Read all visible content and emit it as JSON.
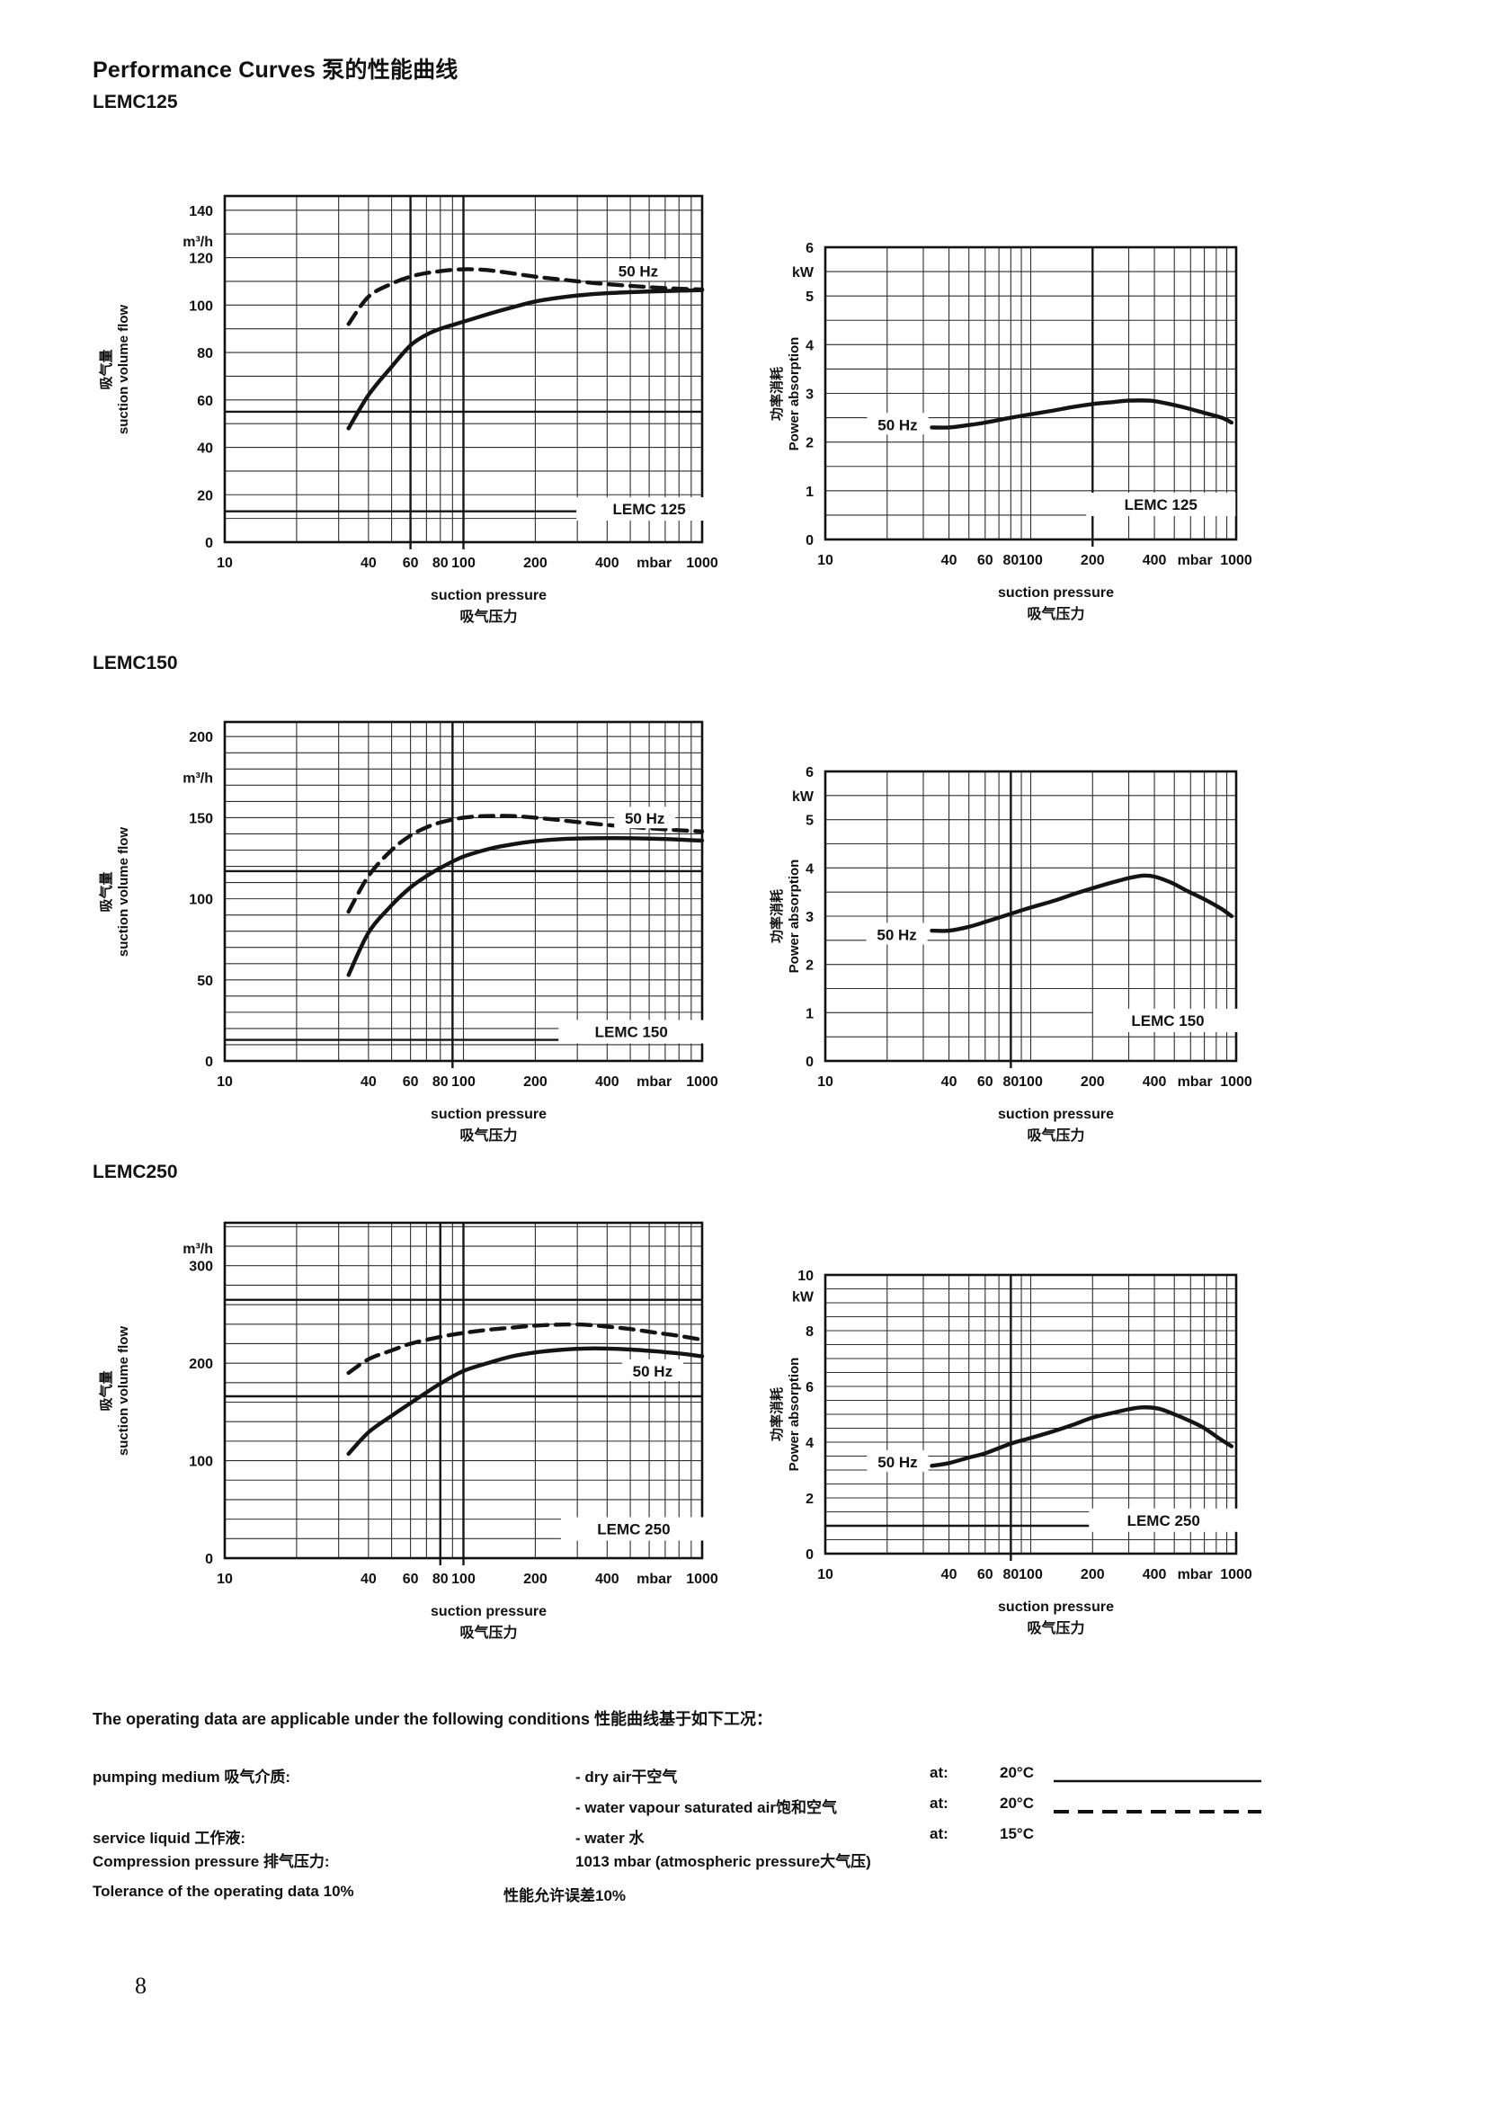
{
  "page": {
    "title": "Performance Curves 泵的性能曲线",
    "page_number": "8"
  },
  "sections": [
    {
      "heading": "LEMC125"
    },
    {
      "heading": "LEMC150"
    },
    {
      "heading": "LEMC250"
    }
  ],
  "axis_labels": {
    "x_title_en": "suction pressure",
    "x_title_zh": "吸气压力",
    "flow_y_zh": "吸气量",
    "flow_y_en": "suction volume flow",
    "power_y_zh": "功率消耗",
    "power_y_en": "Power absorption",
    "freq_label": "50 Hz"
  },
  "chart_data": [
    {
      "id": "lemc125-flow",
      "type": "line",
      "model": "LEMC 125",
      "x_axis": {
        "scale": "log",
        "min": 10,
        "max": 1000,
        "unit": "mbar",
        "tick_labels": [
          "10",
          "40",
          "60",
          "80",
          "100",
          "200",
          "400",
          "mbar",
          "1000"
        ],
        "tick_values": [
          10,
          40,
          60,
          80,
          100,
          200,
          400,
          630,
          1000
        ]
      },
      "y_axis": {
        "min": 0,
        "max": 146,
        "unit": "m³/h",
        "tick_labels": [
          "0",
          "20",
          "40",
          "60",
          "80",
          "100",
          "120",
          "140"
        ],
        "tick_values": [
          0,
          20,
          40,
          60,
          80,
          100,
          120,
          140
        ]
      },
      "series": [
        {
          "name": "50 Hz dry air",
          "style": "solid",
          "points": [
            [
              33,
              48
            ],
            [
              40,
              62
            ],
            [
              50,
              74
            ],
            [
              60,
              83
            ],
            [
              70,
              87.5
            ],
            [
              80,
              90
            ],
            [
              100,
              93
            ],
            [
              130,
              96.5
            ],
            [
              160,
              99
            ],
            [
              200,
              101.5
            ],
            [
              260,
              103.3
            ],
            [
              320,
              104.3
            ],
            [
              400,
              105
            ],
            [
              550,
              105.6
            ],
            [
              750,
              106
            ],
            [
              1000,
              106.3
            ]
          ]
        },
        {
          "name": "50 Hz water vapour saturated air",
          "style": "dashed",
          "points": [
            [
              33,
              92
            ],
            [
              40,
              103.5
            ],
            [
              50,
              109
            ],
            [
              60,
              112
            ],
            [
              70,
              113.5
            ],
            [
              80,
              114.3
            ],
            [
              95,
              115
            ],
            [
              115,
              115
            ],
            [
              140,
              114.2
            ],
            [
              200,
              112
            ],
            [
              260,
              110.7
            ],
            [
              330,
              109.6
            ],
            [
              400,
              108.8
            ],
            [
              550,
              107.8
            ],
            [
              750,
              107
            ],
            [
              1000,
              106.6
            ]
          ]
        }
      ]
    },
    {
      "id": "lemc125-power",
      "type": "line",
      "model": "LEMC 125",
      "x_axis": {
        "scale": "log",
        "min": 10,
        "max": 1000,
        "unit": "mbar",
        "tick_labels": [
          "10",
          "40",
          "60",
          "80",
          "100",
          "200",
          "400",
          "mbar",
          "1000"
        ],
        "tick_values": [
          10,
          40,
          60,
          80,
          100,
          200,
          400,
          630,
          1000
        ]
      },
      "y_axis": {
        "min": 0,
        "max": 6,
        "unit": "kW",
        "tick_labels": [
          "0",
          "1",
          "2",
          "3",
          "4",
          "5",
          "6"
        ],
        "tick_values": [
          0,
          1,
          2,
          3,
          4,
          5,
          6
        ]
      },
      "series": [
        {
          "name": "50 Hz",
          "style": "solid",
          "points": [
            [
              33,
              2.3
            ],
            [
              40,
              2.3
            ],
            [
              50,
              2.35
            ],
            [
              60,
              2.4
            ],
            [
              80,
              2.5
            ],
            [
              100,
              2.57
            ],
            [
              130,
              2.65
            ],
            [
              160,
              2.72
            ],
            [
              200,
              2.78
            ],
            [
              250,
              2.82
            ],
            [
              300,
              2.85
            ],
            [
              380,
              2.85
            ],
            [
              450,
              2.8
            ],
            [
              550,
              2.72
            ],
            [
              700,
              2.6
            ],
            [
              850,
              2.5
            ],
            [
              950,
              2.4
            ]
          ]
        }
      ]
    },
    {
      "id": "lemc150-flow",
      "type": "line",
      "model": "LEMC 150",
      "x_axis": {
        "scale": "log",
        "min": 10,
        "max": 1000,
        "unit": "mbar",
        "tick_labels": [
          "10",
          "40",
          "60",
          "80",
          "100",
          "200",
          "400",
          "mbar",
          "1000"
        ],
        "tick_values": [
          10,
          40,
          60,
          80,
          100,
          200,
          400,
          630,
          1000
        ]
      },
      "y_axis": {
        "min": 0,
        "max": 209,
        "unit": "m³/h",
        "tick_labels": [
          "0",
          "50",
          "100",
          "150",
          "200"
        ],
        "tick_values": [
          0,
          50,
          100,
          150,
          200
        ]
      },
      "series": [
        {
          "name": "50 Hz dry air",
          "style": "solid",
          "points": [
            [
              33,
              53
            ],
            [
              40,
              79
            ],
            [
              50,
              96
            ],
            [
              60,
              107
            ],
            [
              70,
              114
            ],
            [
              80,
              119
            ],
            [
              100,
              126
            ],
            [
              130,
              131
            ],
            [
              160,
              133.5
            ],
            [
              200,
              135.5
            ],
            [
              260,
              136.8
            ],
            [
              350,
              137.3
            ],
            [
              500,
              137.3
            ],
            [
              700,
              136.8
            ],
            [
              1000,
              135.8
            ]
          ]
        },
        {
          "name": "50 Hz water vapour saturated air",
          "style": "dashed",
          "points": [
            [
              33,
              92
            ],
            [
              40,
              114
            ],
            [
              50,
              130
            ],
            [
              60,
              139
            ],
            [
              70,
              144
            ],
            [
              80,
              147
            ],
            [
              100,
              150
            ],
            [
              125,
              151
            ],
            [
              160,
              151
            ],
            [
              200,
              150
            ],
            [
              260,
              148.3
            ],
            [
              350,
              146.3
            ],
            [
              500,
              144.3
            ],
            [
              700,
              142.8
            ],
            [
              1000,
              141.5
            ]
          ]
        }
      ]
    },
    {
      "id": "lemc150-power",
      "type": "line",
      "model": "LEMC 150",
      "x_axis": {
        "scale": "log",
        "min": 10,
        "max": 1000,
        "unit": "mbar",
        "tick_labels": [
          "10",
          "40",
          "60",
          "80",
          "100",
          "200",
          "400",
          "mbar",
          "1000"
        ],
        "tick_values": [
          10,
          40,
          60,
          80,
          100,
          200,
          400,
          630,
          1000
        ]
      },
      "y_axis": {
        "min": 0,
        "max": 6,
        "unit": "kW",
        "tick_labels": [
          "0",
          "1",
          "2",
          "3",
          "4",
          "5",
          "6"
        ],
        "tick_values": [
          0,
          1,
          2,
          3,
          4,
          5,
          6
        ]
      },
      "series": [
        {
          "name": "50 Hz",
          "style": "solid",
          "points": [
            [
              33,
              2.7
            ],
            [
              40,
              2.7
            ],
            [
              50,
              2.78
            ],
            [
              60,
              2.88
            ],
            [
              80,
              3.05
            ],
            [
              100,
              3.18
            ],
            [
              130,
              3.32
            ],
            [
              160,
              3.45
            ],
            [
              200,
              3.58
            ],
            [
              250,
              3.7
            ],
            [
              300,
              3.79
            ],
            [
              350,
              3.84
            ],
            [
              400,
              3.82
            ],
            [
              480,
              3.7
            ],
            [
              580,
              3.52
            ],
            [
              700,
              3.35
            ],
            [
              850,
              3.15
            ],
            [
              950,
              3.0
            ]
          ]
        }
      ]
    },
    {
      "id": "lemc250-flow",
      "type": "line",
      "model": "LEMC 250",
      "x_axis": {
        "scale": "log",
        "min": 10,
        "max": 1000,
        "unit": "mbar",
        "tick_labels": [
          "10",
          "40",
          "60",
          "80",
          "100",
          "200",
          "400",
          "mbar",
          "1000"
        ],
        "tick_values": [
          10,
          40,
          60,
          80,
          100,
          200,
          400,
          630,
          1000
        ]
      },
      "y_axis": {
        "min": 0,
        "max": 344,
        "unit": "m³/h",
        "tick_labels": [
          "0",
          "100",
          "200",
          "300"
        ],
        "tick_values": [
          0,
          100,
          200,
          300
        ]
      },
      "series": [
        {
          "name": "50 Hz dry air",
          "style": "solid",
          "points": [
            [
              33,
              107
            ],
            [
              40,
              129
            ],
            [
              50,
              146
            ],
            [
              60,
              159
            ],
            [
              70,
              170
            ],
            [
              80,
              179
            ],
            [
              100,
              192
            ],
            [
              130,
              201
            ],
            [
              160,
              207
            ],
            [
              200,
              211
            ],
            [
              250,
              213.5
            ],
            [
              320,
              215
            ],
            [
              400,
              215
            ],
            [
              500,
              214
            ],
            [
              650,
              212
            ],
            [
              800,
              210
            ],
            [
              1000,
              207
            ]
          ]
        },
        {
          "name": "50 Hz water vapour saturated air",
          "style": "dashed",
          "points": [
            [
              33,
              190
            ],
            [
              40,
              204
            ],
            [
              50,
              213
            ],
            [
              60,
              220
            ],
            [
              80,
              227
            ],
            [
              100,
              231
            ],
            [
              130,
              234.5
            ],
            [
              160,
              236.5
            ],
            [
              200,
              238.5
            ],
            [
              250,
              239.5
            ],
            [
              320,
              239.5
            ],
            [
              400,
              237.5
            ],
            [
              500,
              235
            ],
            [
              650,
              231
            ],
            [
              800,
              228
            ],
            [
              1000,
              224
            ]
          ]
        }
      ]
    },
    {
      "id": "lemc250-power",
      "type": "line",
      "model": "LEMC 250",
      "x_axis": {
        "scale": "log",
        "min": 10,
        "max": 1000,
        "unit": "mbar",
        "tick_labels": [
          "10",
          "40",
          "60",
          "80",
          "100",
          "200",
          "400",
          "mbar",
          "1000"
        ],
        "tick_values": [
          10,
          40,
          60,
          80,
          100,
          200,
          400,
          630,
          1000
        ]
      },
      "y_axis": {
        "min": 0,
        "max": 10,
        "unit": "kW",
        "tick_labels": [
          "0",
          "2",
          "4",
          "6",
          "8",
          "10"
        ],
        "tick_values": [
          0,
          2,
          4,
          6,
          8,
          10
        ]
      },
      "series": [
        {
          "name": "50 Hz",
          "style": "solid",
          "points": [
            [
              33,
              3.15
            ],
            [
              40,
              3.25
            ],
            [
              50,
              3.45
            ],
            [
              60,
              3.6
            ],
            [
              80,
              3.95
            ],
            [
              100,
              4.15
            ],
            [
              130,
              4.4
            ],
            [
              160,
              4.62
            ],
            [
              200,
              4.88
            ],
            [
              250,
              5.05
            ],
            [
              300,
              5.18
            ],
            [
              350,
              5.25
            ],
            [
              420,
              5.2
            ],
            [
              500,
              5.0
            ],
            [
              600,
              4.75
            ],
            [
              700,
              4.5
            ],
            [
              820,
              4.15
            ],
            [
              950,
              3.85
            ]
          ]
        }
      ]
    }
  ],
  "conditions": {
    "intro": "The operating data are applicable under the following conditions 性能曲线基于如下工况：",
    "rows": [
      {
        "label": "pumping medium 吸气介质:",
        "value": "- dry air干空气",
        "at": "at:",
        "temp": "20°C",
        "line": "solid"
      },
      {
        "label": "",
        "value": "- water vapour saturated air饱和空气",
        "at": "at:",
        "temp": "20°C",
        "line": "dashed"
      },
      {
        "label": "service liquid 工作液:",
        "value": "- water 水",
        "at": "at:",
        "temp": "15°C",
        "line": "none"
      },
      {
        "label": "Compression pressure 排气压力:",
        "value": "1013 mbar (atmospheric pressure大气压)",
        "at": "",
        "temp": "",
        "line": "none"
      },
      {
        "label": "Tolerance of the operating data 10%",
        "value": "性能允许误差10%",
        "at": "",
        "temp": "",
        "line": "none"
      }
    ]
  }
}
